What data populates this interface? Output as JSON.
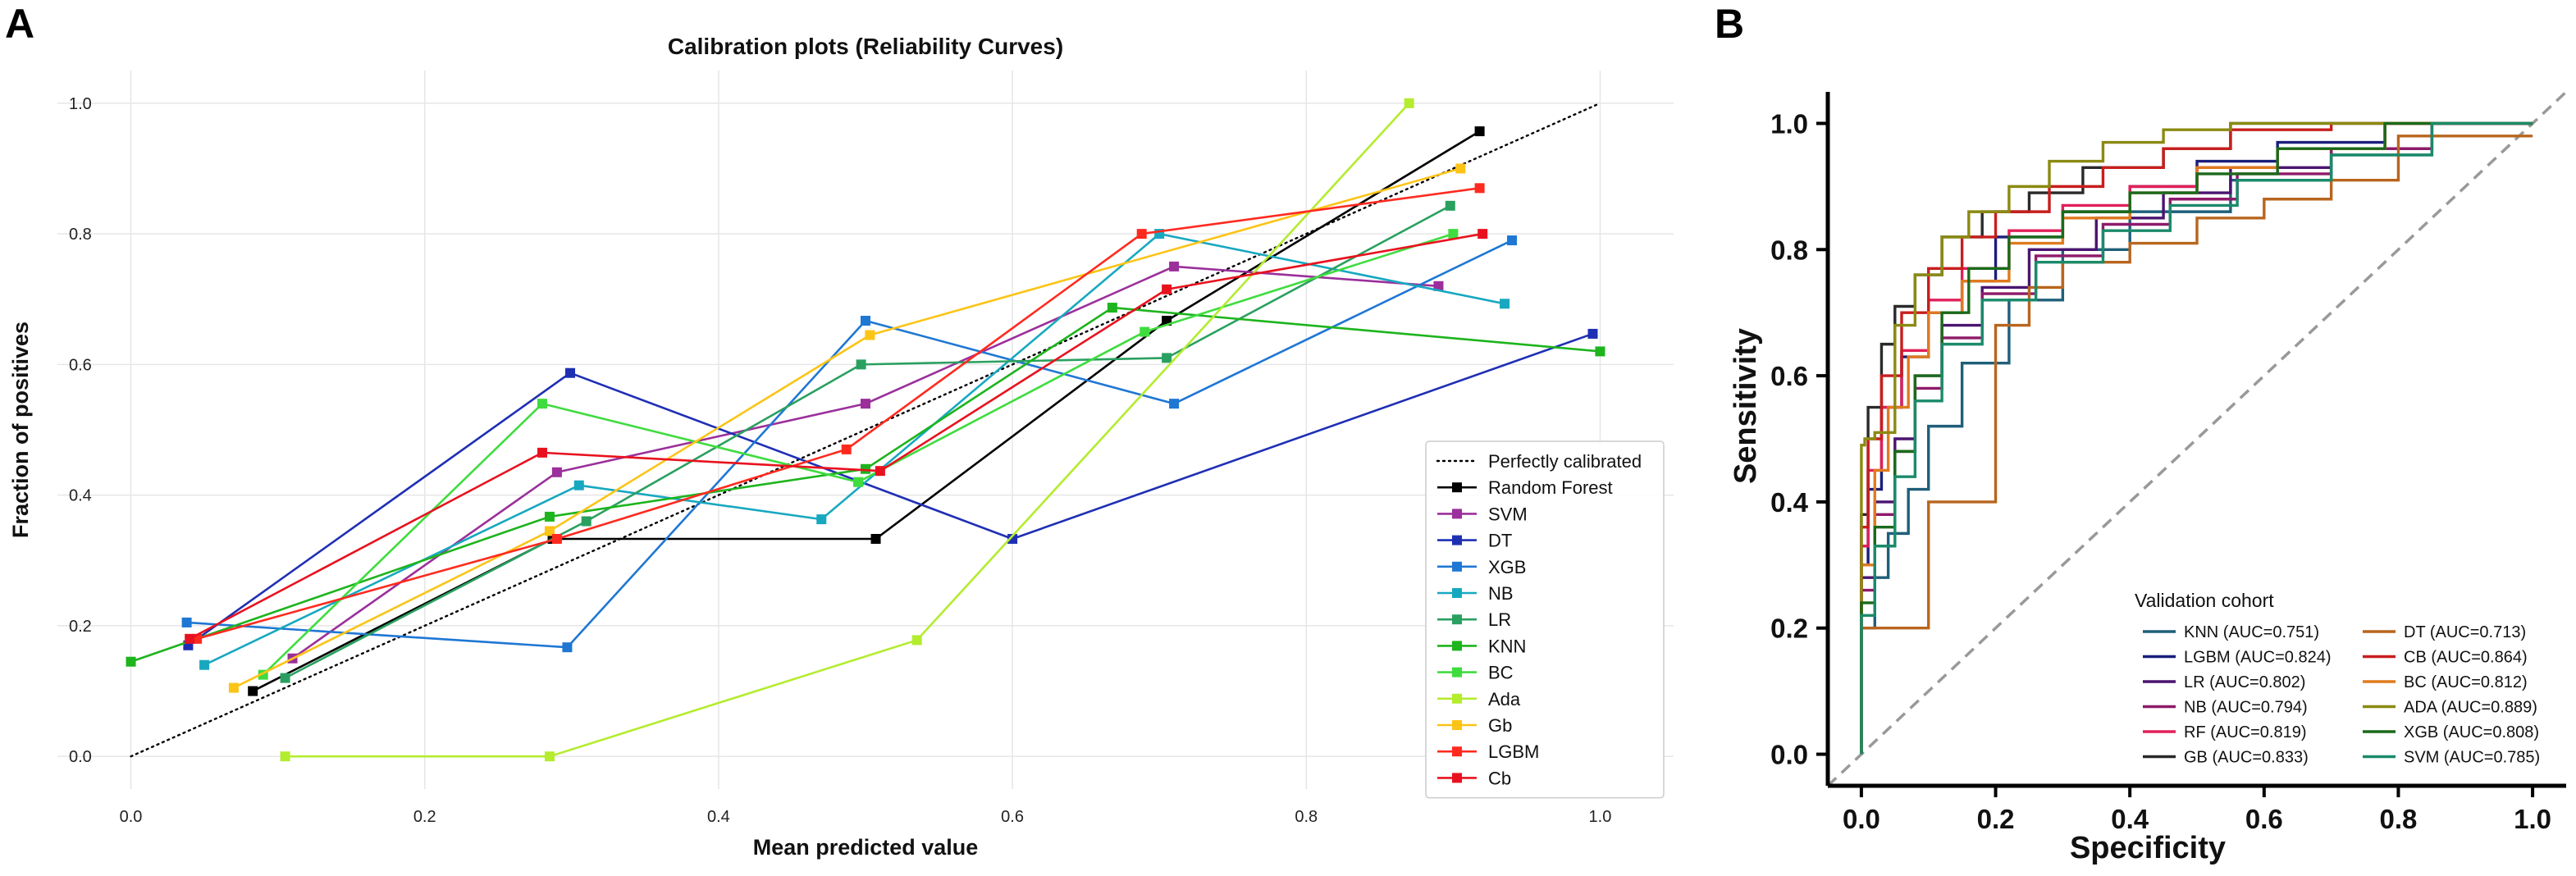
{
  "panels": {
    "a": "A",
    "b": "B"
  },
  "chart_data": [
    {
      "type": "line",
      "panel": "A",
      "title": "Calibration plots (Reliability Curves)",
      "xlabel": "Mean predicted value",
      "ylabel": "Fraction of positives",
      "xlim": [
        -0.05,
        1.05
      ],
      "ylim": [
        -0.05,
        1.05
      ],
      "grid": true,
      "xticks": [
        0.0,
        0.2,
        0.4,
        0.6,
        0.8,
        1.0
      ],
      "yticks": [
        0.0,
        0.2,
        0.4,
        0.6,
        0.8,
        1.0
      ],
      "xtick_labels": [
        "0.0",
        "0.2",
        "0.4",
        "0.6",
        "0.8",
        "1.0"
      ],
      "ytick_labels": [
        "0.0",
        "0.2",
        "0.4",
        "0.6",
        "0.8",
        "1.0"
      ],
      "legend_position": "lower-right",
      "reference": {
        "name": "Perfectly calibrated",
        "color": "#000000",
        "x": [
          0,
          1
        ],
        "y": [
          0,
          1
        ]
      },
      "series": [
        {
          "name": "Random Forest",
          "color": "#000000",
          "x": [
            0.083,
            0.287,
            0.507,
            0.705,
            0.918
          ],
          "y": [
            0.1,
            0.333,
            0.333,
            0.667,
            0.957
          ]
        },
        {
          "name": "SVM",
          "color": "#9b2f9b",
          "x": [
            0.11,
            0.29,
            0.5,
            0.71,
            0.89
          ],
          "y": [
            0.15,
            0.435,
            0.54,
            0.75,
            0.72
          ]
        },
        {
          "name": "DT",
          "color": "#1f2fb4",
          "x": [
            0.039,
            0.299,
            0.6,
            0.995
          ],
          "y": [
            0.17,
            0.587,
            0.333,
            0.647
          ]
        },
        {
          "name": "XGB",
          "color": "#1f77d4",
          "x": [
            0.038,
            0.297,
            0.5,
            0.71,
            0.94
          ],
          "y": [
            0.205,
            0.167,
            0.667,
            0.54,
            0.79
          ]
        },
        {
          "name": "NB",
          "color": "#17a8c0",
          "x": [
            0.05,
            0.305,
            0.47,
            0.7,
            0.935
          ],
          "y": [
            0.14,
            0.415,
            0.363,
            0.8,
            0.693
          ]
        },
        {
          "name": "LR",
          "color": "#2aa060",
          "x": [
            0.105,
            0.31,
            0.497,
            0.705,
            0.898
          ],
          "y": [
            0.12,
            0.36,
            0.6,
            0.61,
            0.843
          ]
        },
        {
          "name": "KNN",
          "color": "#1db41d",
          "x": [
            0.0,
            0.285,
            0.5,
            0.668,
            1.0
          ],
          "y": [
            0.145,
            0.367,
            0.44,
            0.687,
            0.62
          ]
        },
        {
          "name": "BC",
          "color": "#3fdc3f",
          "x": [
            0.09,
            0.28,
            0.495,
            0.69,
            0.9
          ],
          "y": [
            0.125,
            0.54,
            0.42,
            0.65,
            0.8
          ]
        },
        {
          "name": "Ada",
          "color": "#b4ec2e",
          "x": [
            0.105,
            0.285,
            0.535,
            0.87
          ],
          "y": [
            0.0,
            0.0,
            0.178,
            1.0
          ]
        },
        {
          "name": "Gb",
          "color": "#fcc417",
          "x": [
            0.07,
            0.285,
            0.503,
            0.905
          ],
          "y": [
            0.105,
            0.345,
            0.645,
            0.9
          ]
        },
        {
          "name": "LGBM",
          "color": "#ff2a1f",
          "x": [
            0.045,
            0.29,
            0.487,
            0.688,
            0.918
          ],
          "y": [
            0.18,
            0.333,
            0.47,
            0.8,
            0.87
          ]
        },
        {
          "name": "Cb",
          "color": "#e8121e",
          "x": [
            0.04,
            0.28,
            0.51,
            0.705,
            0.92
          ],
          "y": [
            0.18,
            0.465,
            0.437,
            0.715,
            0.8
          ]
        }
      ]
    },
    {
      "type": "line",
      "panel": "B",
      "xlabel": "Specificity",
      "ylabel": "Sensitivity",
      "xlim": [
        -0.05,
        1.05
      ],
      "ylim": [
        -0.05,
        1.05
      ],
      "grid": false,
      "xticks": [
        0.0,
        0.2,
        0.4,
        0.6,
        0.8,
        1.0
      ],
      "yticks": [
        0.0,
        0.2,
        0.4,
        0.6,
        0.8,
        1.0
      ],
      "xtick_labels": [
        "0.0",
        "0.2",
        "0.4",
        "0.6",
        "0.8",
        "1.0"
      ],
      "ytick_labels": [
        "0.0",
        "0.2",
        "0.4",
        "0.6",
        "0.8",
        "1.0"
      ],
      "legend_title": "Validation cohort",
      "legend_position": "lower-right",
      "reference": {
        "color": "#999999",
        "x": [
          0,
          1
        ],
        "y": [
          0,
          1
        ]
      },
      "series": [
        {
          "name": "KNN (AUC=0.751)",
          "color": "#1f5f7a",
          "auc": 0.751,
          "x": [
            0,
            0.02,
            0.04,
            0.07,
            0.1,
            0.15,
            0.22,
            0.3,
            0.4,
            0.55,
            0.7,
            0.85,
            1.0
          ],
          "y": [
            0,
            0.2,
            0.28,
            0.35,
            0.42,
            0.52,
            0.62,
            0.72,
            0.8,
            0.86,
            0.91,
            0.95,
            1.0
          ]
        },
        {
          "name": "LGBM (AUC=0.824)",
          "color": "#1a1f7a",
          "auc": 0.824,
          "x": [
            0,
            0.01,
            0.03,
            0.06,
            0.1,
            0.15,
            0.2,
            0.3,
            0.4,
            0.5,
            0.62,
            0.78,
            1.0
          ],
          "y": [
            0,
            0.3,
            0.42,
            0.55,
            0.63,
            0.7,
            0.75,
            0.82,
            0.86,
            0.9,
            0.94,
            0.97,
            1.0
          ]
        },
        {
          "name": "LR (AUC=0.802)",
          "color": "#4b1470",
          "auc": 0.802,
          "x": [
            0,
            0.02,
            0.05,
            0.08,
            0.12,
            0.18,
            0.25,
            0.35,
            0.45,
            0.55,
            0.7,
            0.85,
            1.0
          ],
          "y": [
            0,
            0.28,
            0.4,
            0.5,
            0.6,
            0.68,
            0.74,
            0.8,
            0.85,
            0.89,
            0.93,
            0.96,
            1.0
          ]
        },
        {
          "name": "NB (AUC=0.794)",
          "color": "#8e1a6a",
          "auc": 0.794,
          "x": [
            0,
            0.02,
            0.05,
            0.08,
            0.12,
            0.18,
            0.26,
            0.36,
            0.46,
            0.56,
            0.7,
            0.85,
            1.0
          ],
          "y": [
            0,
            0.26,
            0.38,
            0.48,
            0.58,
            0.66,
            0.73,
            0.79,
            0.84,
            0.88,
            0.92,
            0.96,
            1.0
          ]
        },
        {
          "name": "RF (AUC=0.819)",
          "color": "#e0205a",
          "auc": 0.819,
          "x": [
            0,
            0.01,
            0.03,
            0.06,
            0.1,
            0.15,
            0.22,
            0.3,
            0.4,
            0.5,
            0.62,
            0.78,
            1.0
          ],
          "y": [
            0,
            0.33,
            0.45,
            0.55,
            0.64,
            0.72,
            0.77,
            0.83,
            0.87,
            0.9,
            0.93,
            0.96,
            1.0
          ]
        },
        {
          "name": "GB (AUC=0.833)",
          "color": "#2a2a2a",
          "auc": 0.833,
          "x": [
            0,
            0.01,
            0.03,
            0.05,
            0.08,
            0.12,
            0.18,
            0.25,
            0.33,
            0.45,
            0.55,
            0.68,
            1.0
          ],
          "y": [
            0,
            0.38,
            0.55,
            0.65,
            0.71,
            0.76,
            0.82,
            0.86,
            0.89,
            0.93,
            0.96,
            1.0,
            1.0
          ]
        },
        {
          "name": "DT (AUC=0.713)",
          "color": "#b8651e",
          "auc": 0.713,
          "x": [
            0,
            0.1,
            0.2,
            0.25,
            0.3,
            0.4,
            0.5,
            0.6,
            0.7,
            0.8,
            1.0
          ],
          "y": [
            0,
            0.2,
            0.4,
            0.68,
            0.74,
            0.78,
            0.81,
            0.85,
            0.88,
            0.91,
            0.98
          ]
        },
        {
          "name": "CB (AUC=0.864)",
          "color": "#c81e1e",
          "auc": 0.864,
          "x": [
            0,
            0.01,
            0.03,
            0.06,
            0.1,
            0.15,
            0.2,
            0.28,
            0.36,
            0.45,
            0.55,
            0.7,
            1.0
          ],
          "y": [
            0,
            0.36,
            0.5,
            0.6,
            0.7,
            0.77,
            0.82,
            0.86,
            0.9,
            0.93,
            0.96,
            0.99,
            1.0
          ]
        },
        {
          "name": "BC (AUC=0.812)",
          "color": "#e07a1e",
          "auc": 0.812,
          "x": [
            0,
            0.02,
            0.04,
            0.07,
            0.1,
            0.15,
            0.22,
            0.3,
            0.4,
            0.5,
            0.62,
            0.78,
            1.0
          ],
          "y": [
            0,
            0.3,
            0.45,
            0.55,
            0.63,
            0.7,
            0.75,
            0.81,
            0.85,
            0.89,
            0.93,
            0.96,
            1.0
          ]
        },
        {
          "name": "ADA (AUC=0.889)",
          "color": "#8a8a12",
          "auc": 0.889,
          "x": [
            0,
            0.005,
            0.02,
            0.05,
            0.08,
            0.12,
            0.16,
            0.22,
            0.28,
            0.36,
            0.45,
            0.55,
            1.0
          ],
          "y": [
            0,
            0.49,
            0.5,
            0.51,
            0.68,
            0.76,
            0.82,
            0.86,
            0.9,
            0.94,
            0.97,
            0.99,
            1.0
          ]
        },
        {
          "name": "XGB (AUC=0.808)",
          "color": "#1a6a1a",
          "auc": 0.808,
          "x": [
            0,
            0.02,
            0.05,
            0.08,
            0.12,
            0.16,
            0.22,
            0.3,
            0.4,
            0.5,
            0.62,
            0.78,
            1.0
          ],
          "y": [
            0,
            0.24,
            0.36,
            0.48,
            0.6,
            0.7,
            0.77,
            0.82,
            0.86,
            0.89,
            0.92,
            0.96,
            1.0
          ]
        },
        {
          "name": "SVM (AUC=0.785)",
          "color": "#1a8a6a",
          "auc": 0.785,
          "x": [
            0,
            0.02,
            0.05,
            0.08,
            0.12,
            0.18,
            0.26,
            0.36,
            0.46,
            0.56,
            0.7,
            0.85,
            1.0
          ],
          "y": [
            0,
            0.22,
            0.33,
            0.44,
            0.56,
            0.65,
            0.72,
            0.78,
            0.83,
            0.87,
            0.91,
            0.95,
            1.0
          ]
        }
      ]
    }
  ]
}
